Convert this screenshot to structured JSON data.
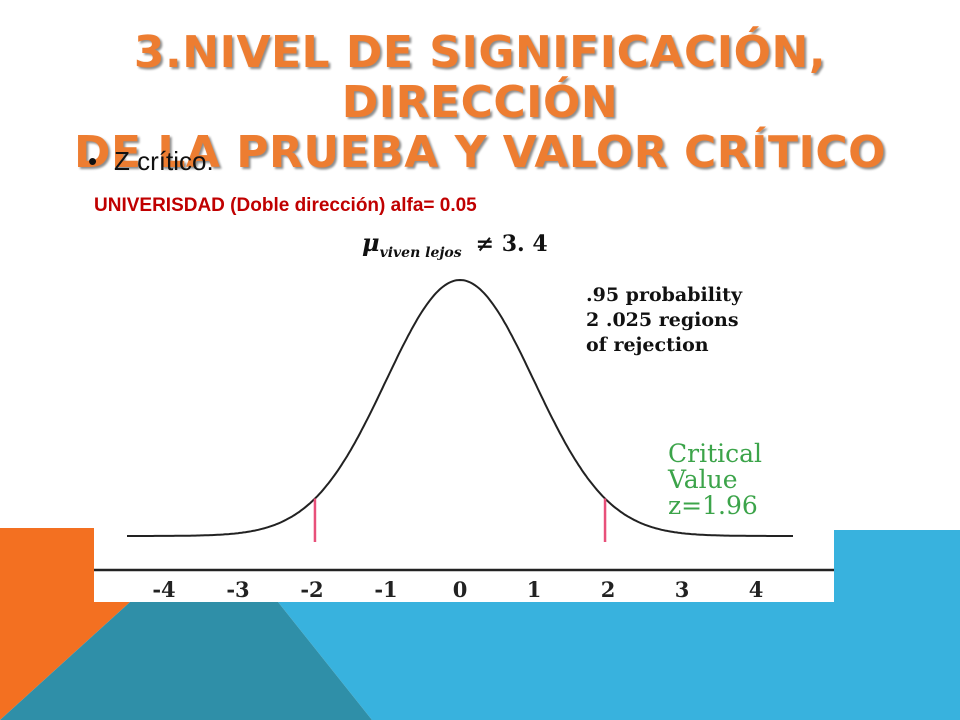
{
  "colors": {
    "title": "#ED7D31",
    "subtitle": "#C00000",
    "critical_text": "#3CA44A",
    "critical_lines": "#E8507A",
    "deco_orange": "#F37021",
    "deco_blue": "#38B2DE",
    "deco_teal": "#2F8FA8"
  },
  "slide": {
    "title_line1": "3.NIVEL DE SIGNIFICACIÓN, DIRECCIÓN",
    "title_line2": "DE LA PRUEBA Y VALOR CRÍTICO",
    "bullet": "Z crítico.",
    "subtitle": "UNIVERISDAD (Doble dirección) alfa= 0.05",
    "formula_symbol": "μ",
    "formula_subscript": "viven lejos",
    "formula_rest": "≠ 3. 4"
  },
  "figure": {
    "note_lines": [
      ".95 probability",
      "2 .025 regions",
      "of  rejection"
    ],
    "critical_lines": [
      "Critical",
      "Value",
      "z=1.96"
    ]
  },
  "chart_data": {
    "type": "line",
    "title": "",
    "xlabel": "",
    "ylabel": "",
    "xlim": [
      -4.5,
      4.5
    ],
    "ticks": [
      {
        "value": -4,
        "label": "-4"
      },
      {
        "value": -3,
        "label": "-3"
      },
      {
        "value": -2,
        "label": "-2"
      },
      {
        "value": -1,
        "label": "-1"
      },
      {
        "value": 0,
        "label": "0"
      },
      {
        "value": 1,
        "label": "1"
      },
      {
        "value": 2,
        "label": "2"
      },
      {
        "value": 3,
        "label": "3"
      },
      {
        "value": 4,
        "label": "4"
      }
    ],
    "curve": "standard normal density",
    "critical_values": [
      -1.96,
      1.96
    ]
  }
}
